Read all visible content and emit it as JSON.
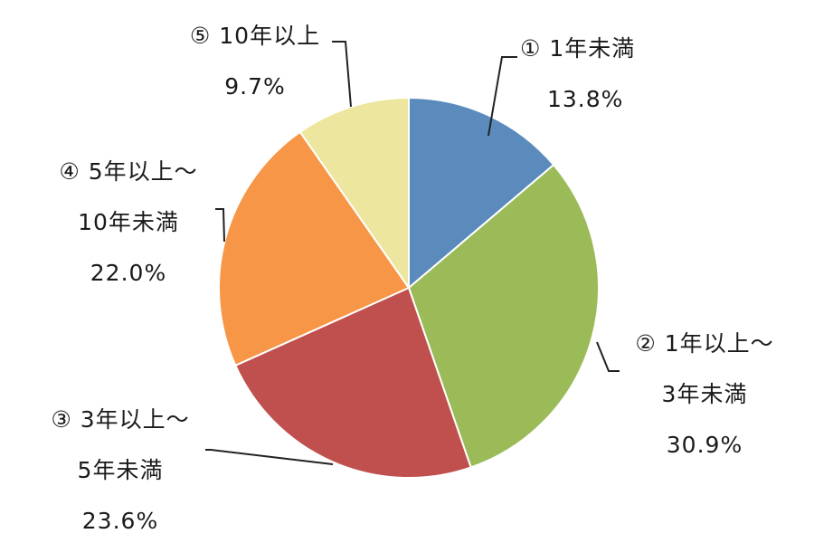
{
  "chart_data": {
    "type": "pie",
    "start_angle": "12 o'clock",
    "direction": "clockwise",
    "slices": [
      {
        "label": "① 1年未満",
        "value": 13.8,
        "value_label": "13.8%",
        "color": "#5b8bbd"
      },
      {
        "label": "② 1年以上～",
        "label_line2": "3年未満",
        "value": 30.9,
        "value_label": "30.9%",
        "color": "#9bbb59"
      },
      {
        "label": "③ 3年以上～",
        "label_line2": "5年未満",
        "value": 23.6,
        "value_label": "23.6%",
        "color": "#c0504d"
      },
      {
        "label": "④ 5年以上～",
        "label_line2": "10年未満",
        "value": 22.0,
        "value_label": "22.0%",
        "color": "#f79646"
      },
      {
        "label": "⑤ 10年以上",
        "value": 9.7,
        "value_label": "9.7%",
        "color": "#ece69e"
      }
    ]
  }
}
